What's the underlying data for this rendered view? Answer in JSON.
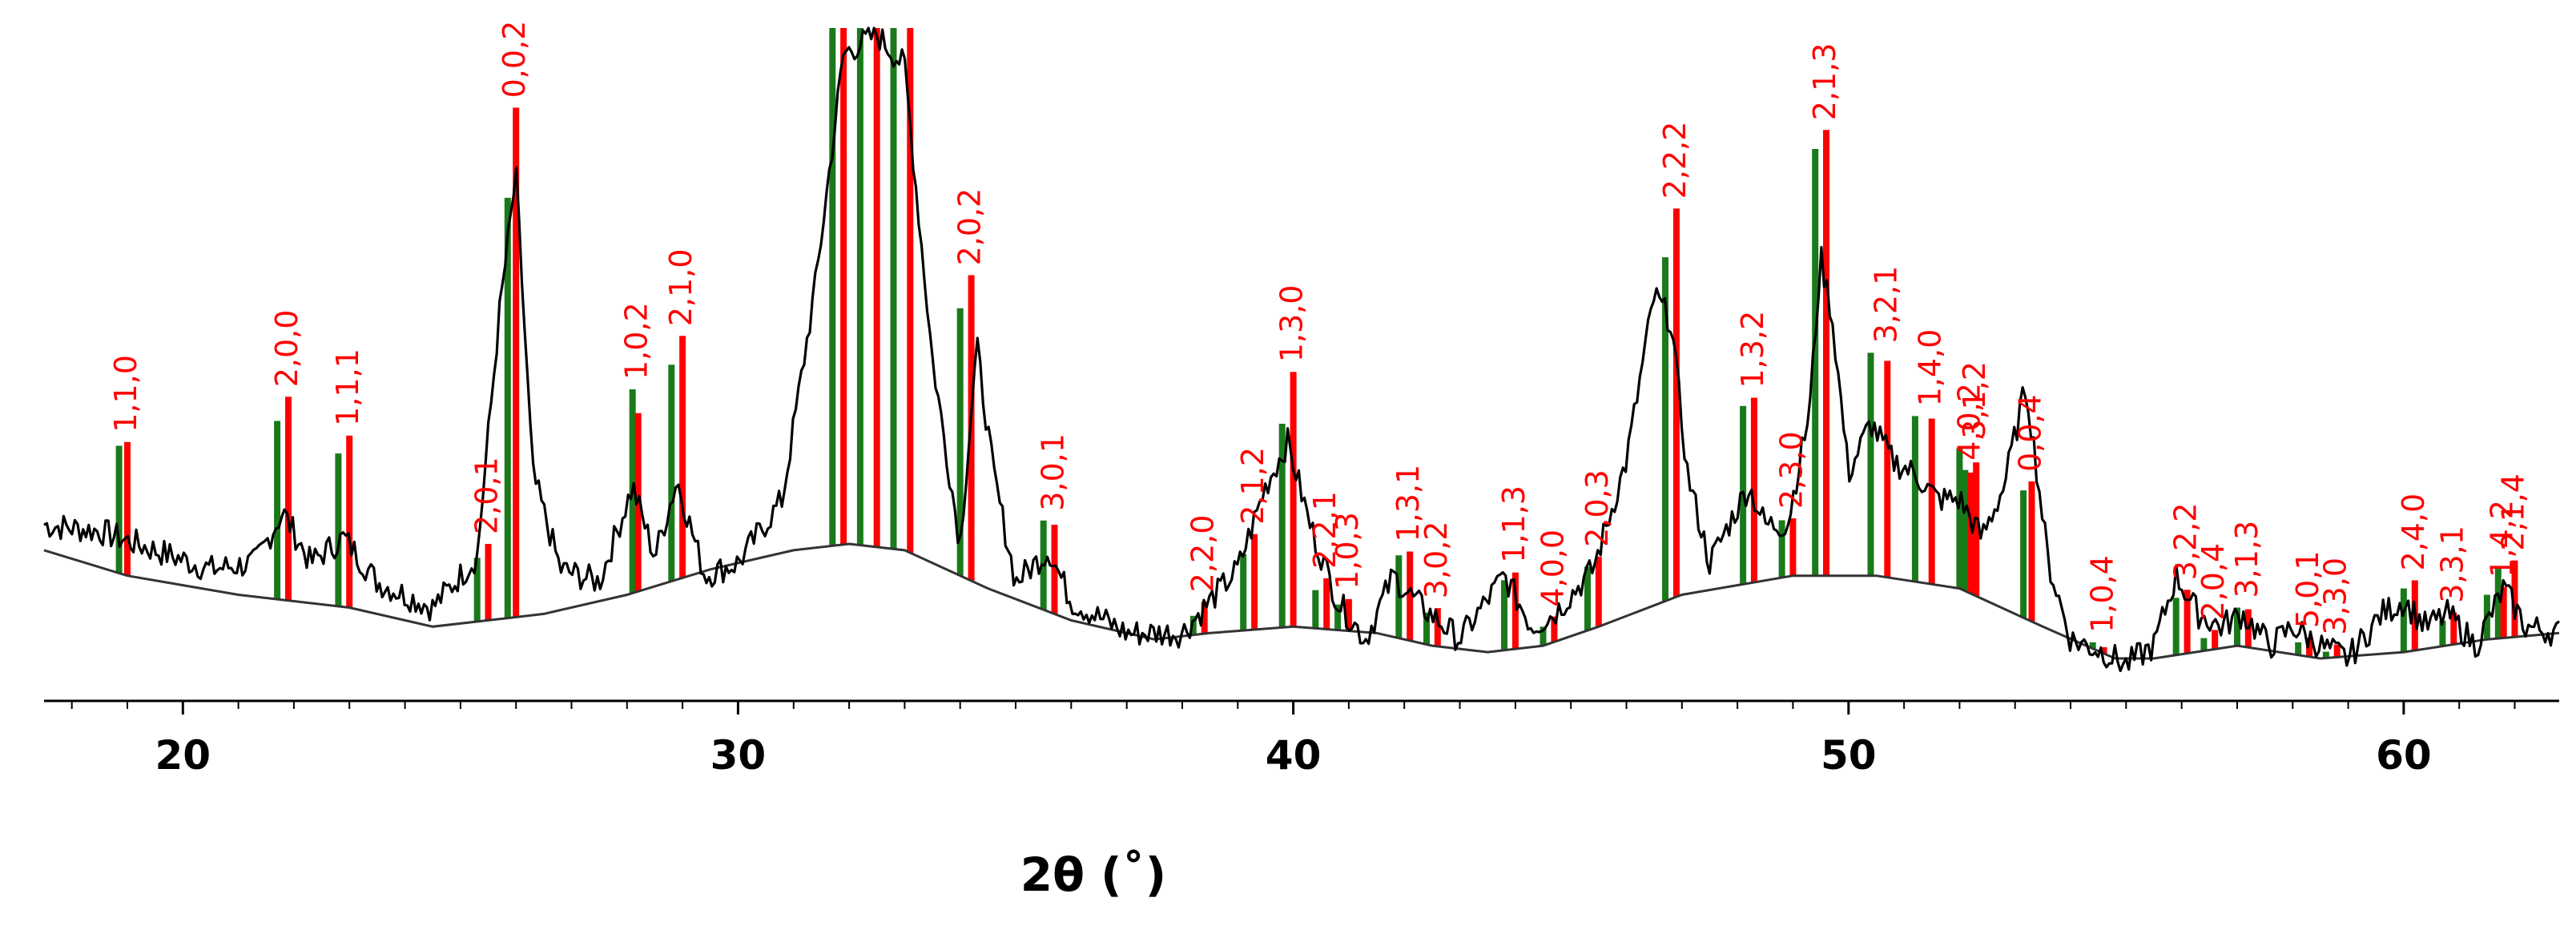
{
  "chart_data": {
    "type": "line",
    "title": "",
    "xlabel": "2θ (˚)",
    "ylabel": "",
    "xlim": [
      17.5,
      62.8
    ],
    "ylim": [
      0,
      100
    ],
    "grid": false,
    "legend": "none",
    "x_ticks": [
      20,
      30,
      40,
      50,
      60
    ],
    "x_tick_labels": [
      "20",
      "30",
      "40",
      "50",
      "60"
    ],
    "colors": {
      "pattern": "#000000",
      "background_curve": "#333333",
      "reference_green": "#1a7a1a",
      "reference_red": "#ff0000",
      "peak_label": "#ff0000"
    },
    "pattern": {
      "x": [
        17.5,
        18.5,
        19.5,
        20.5,
        21.3,
        21.8,
        22.3,
        22.9,
        23.5,
        24.5,
        25.3,
        25.7,
        26.0,
        26.3,
        26.8,
        27.5,
        28.1,
        28.5,
        28.9,
        29.4,
        30.0,
        30.8,
        31.4,
        31.9,
        32.5,
        33.0,
        33.5,
        34.0,
        34.3,
        34.6,
        35.0,
        35.6,
        36.0,
        37.0,
        38.0,
        39.0,
        39.5,
        39.9,
        40.3,
        40.8,
        41.3,
        41.8,
        42.2,
        43.0,
        43.8,
        44.3,
        44.7,
        45.4,
        46.0,
        46.5,
        46.8,
        47.1,
        47.5,
        47.9,
        48.2,
        48.5,
        48.9,
        49.3,
        49.5,
        49.7,
        50.0,
        50.4,
        50.8,
        51.2,
        51.6,
        52.0,
        52.4,
        52.8,
        53.2,
        53.6,
        54.0,
        54.6,
        55.0,
        55.5,
        55.9,
        56.3,
        56.7,
        57.1,
        57.6,
        58.0,
        58.5,
        59.0,
        59.6,
        60.0,
        60.4,
        60.8,
        61.3,
        61.8,
        62.2,
        62.8
      ],
      "y": [
        22,
        21,
        18,
        15,
        16,
        24,
        16,
        20,
        13,
        9,
        17,
        55,
        77,
        30,
        15,
        13,
        28,
        17,
        29,
        14,
        16,
        26,
        60,
        96,
        99,
        94,
        48,
        19,
        50,
        30,
        13,
        18,
        10,
        5,
        5,
        15,
        28,
        35,
        22,
        10,
        4,
        14,
        10,
        4,
        14,
        6,
        8,
        15,
        32,
        58,
        54,
        30,
        16,
        23,
        28,
        22,
        22,
        40,
        64,
        55,
        30,
        38,
        32,
        30,
        26,
        26,
        20,
        28,
        44,
        16,
        4,
        2,
        0,
        3,
        14,
        8,
        6,
        8,
        3,
        6,
        3,
        1,
        8,
        10,
        6,
        8,
        3,
        12,
        6,
        5
      ]
    },
    "background": {
      "x": [
        17.5,
        19.0,
        21.0,
        23.0,
        24.5,
        25.5,
        26.5,
        28.0,
        29.5,
        31.0,
        32.0,
        33.0,
        34.5,
        36.0,
        37.5,
        38.5,
        40.0,
        41.5,
        42.5,
        43.5,
        44.5,
        45.5,
        47.0,
        49.0,
        50.5,
        52.0,
        53.5,
        54.8,
        55.5,
        57.0,
        58.5,
        60.0,
        61.5,
        62.8
      ],
      "y": [
        18,
        14,
        11,
        9,
        6,
        7,
        8,
        11,
        15,
        18,
        19,
        18,
        12,
        7,
        4,
        5,
        6,
        5,
        3,
        2,
        3,
        6,
        11,
        14,
        14,
        12,
        6,
        1,
        1,
        3,
        1,
        2,
        4,
        5
      ]
    },
    "reference_peaks": [
      {
        "label": "1,1,0",
        "green": {
          "x": 18.85,
          "y": 20
        },
        "red": {
          "x": 19.0,
          "y": 21
        }
      },
      {
        "label": "2,0,0",
        "green": {
          "x": 21.7,
          "y": 28
        },
        "red": {
          "x": 21.9,
          "y": 32
        }
      },
      {
        "label": "1,1,1",
        "green": {
          "x": 22.8,
          "y": 24
        },
        "red": {
          "x": 23.0,
          "y": 27
        }
      },
      {
        "label": "2,0,1",
        "green": {
          "x": 25.3,
          "y": 10
        },
        "red": {
          "x": 25.5,
          "y": 12
        }
      },
      {
        "label": "0,0,2",
        "green": {
          "x": 25.85,
          "y": 66
        },
        "red": {
          "x": 26.0,
          "y": 80
        }
      },
      {
        "label": "1,0,2",
        "green": {
          "x": 28.1,
          "y": 32
        },
        "red": {
          "x": 28.2,
          "y": 28
        }
      },
      {
        "label": "2,1,0",
        "green": {
          "x": 28.8,
          "y": 34
        },
        "red": {
          "x": 29.0,
          "y": 38
        }
      },
      {
        "label": "",
        "green": {
          "x": 31.7,
          "y": 100
        },
        "red": {
          "x": 31.9,
          "y": 100
        }
      },
      {
        "label": "",
        "green": {
          "x": 32.2,
          "y": 100
        },
        "red": {
          "x": 32.5,
          "y": 100
        }
      },
      {
        "label": "",
        "green": {
          "x": 32.8,
          "y": 100
        },
        "red": {
          "x": 33.1,
          "y": 100
        }
      },
      {
        "label": "2,0,2",
        "green": {
          "x": 34.0,
          "y": 42
        },
        "red": {
          "x": 34.2,
          "y": 48
        }
      },
      {
        "label": "3,0,1",
        "green": {
          "x": 35.5,
          "y": 14
        },
        "red": {
          "x": 35.7,
          "y": 14
        }
      },
      {
        "label": "2,2,0",
        "green": {
          "x": 38.2,
          "y": 3
        },
        "red": {
          "x": 38.4,
          "y": 5
        }
      },
      {
        "label": "2,1,2",
        "green": {
          "x": 39.1,
          "y": 12
        },
        "red": {
          "x": 39.3,
          "y": 15
        }
      },
      {
        "label": "1,3,0",
        "green": {
          "x": 39.8,
          "y": 32
        },
        "red": {
          "x": 40.0,
          "y": 40
        }
      },
      {
        "label": "2,2,1",
        "green": {
          "x": 40.4,
          "y": 6
        },
        "red": {
          "x": 40.6,
          "y": 8
        }
      },
      {
        "label": "1,0,3",
        "green": {
          "x": 40.8,
          "y": 4
        },
        "red": {
          "x": 41.0,
          "y": 5
        }
      },
      {
        "label": "1,3,1",
        "green": {
          "x": 41.9,
          "y": 13
        },
        "red": {
          "x": 42.1,
          "y": 14
        }
      },
      {
        "label": "3,0,2",
        "green": {
          "x": 42.4,
          "y": 5
        },
        "red": {
          "x": 42.6,
          "y": 6
        }
      },
      {
        "label": "1,1,3",
        "green": {
          "x": 43.8,
          "y": 11
        },
        "red": {
          "x": 44.0,
          "y": 12
        }
      },
      {
        "label": "4,0,0",
        "green": {
          "x": 44.5,
          "y": 3
        },
        "red": {
          "x": 44.7,
          "y": 4
        }
      },
      {
        "label": "2,0,3",
        "green": {
          "x": 45.3,
          "y": 10
        },
        "red": {
          "x": 45.5,
          "y": 11
        }
      },
      {
        "label": "2,2,2",
        "green": {
          "x": 46.7,
          "y": 54
        },
        "red": {
          "x": 46.9,
          "y": 61
        }
      },
      {
        "label": "1,3,2",
        "green": {
          "x": 48.1,
          "y": 28
        },
        "red": {
          "x": 48.3,
          "y": 29
        }
      },
      {
        "label": "2,3,0",
        "green": {
          "x": 48.8,
          "y": 9
        },
        "red": {
          "x": 49.0,
          "y": 9
        }
      },
      {
        "label": "2,1,3",
        "green": {
          "x": 49.4,
          "y": 67
        },
        "red": {
          "x": 49.6,
          "y": 70
        }
      },
      {
        "label": "3,2,1",
        "green": {
          "x": 50.4,
          "y": 35
        },
        "red": {
          "x": 50.7,
          "y": 34
        }
      },
      {
        "label": "1,4,0",
        "green": {
          "x": 51.2,
          "y": 26
        },
        "red": {
          "x": 51.5,
          "y": 26
        }
      },
      {
        "label": "3,1,2",
        "green": {
          "x": 52.0,
          "y": 22
        },
        "red": {
          "x": 52.3,
          "y": 21
        }
      },
      {
        "label": "4,0,2",
        "green": {
          "x": 52.1,
          "y": 19
        },
        "red": {
          "x": 52.2,
          "y": 19
        }
      },
      {
        "label": "0,0,4",
        "green": {
          "x": 53.15,
          "y": 20
        },
        "red": {
          "x": 53.3,
          "y": 22
        }
      },
      {
        "label": "1,0,4",
        "green": {
          "x": 54.4,
          "y": 1
        },
        "red": {
          "x": 54.6,
          "y": 1
        }
      },
      {
        "label": "3,2,2",
        "green": {
          "x": 55.9,
          "y": 9
        },
        "red": {
          "x": 56.1,
          "y": 10
        }
      },
      {
        "label": "2,0,4",
        "green": {
          "x": 56.4,
          "y": 2
        },
        "red": {
          "x": 56.6,
          "y": 3
        }
      },
      {
        "label": "3,1,3",
        "green": {
          "x": 57.0,
          "y": 6
        },
        "red": {
          "x": 57.2,
          "y": 6
        }
      },
      {
        "label": "5,0,1",
        "green": {
          "x": 58.1,
          "y": 2
        },
        "red": {
          "x": 58.3,
          "y": 3
        }
      },
      {
        "label": "3,3,0",
        "green": {
          "x": 58.6,
          "y": 1
        },
        "red": {
          "x": 58.8,
          "y": 2
        }
      },
      {
        "label": "2,4,0",
        "green": {
          "x": 60.0,
          "y": 10
        },
        "red": {
          "x": 60.2,
          "y": 11
        }
      },
      {
        "label": "3,3,1",
        "green": {
          "x": 60.7,
          "y": 4
        },
        "red": {
          "x": 60.9,
          "y": 5
        }
      },
      {
        "label": "2,1,4",
        "green": {
          "x": 61.7,
          "y": 11
        },
        "red": {
          "x": 62.0,
          "y": 12
        }
      },
      {
        "label": "1,4,2",
        "green": {
          "x": 61.5,
          "y": 7
        },
        "red": {
          "x": 61.8,
          "y": 8
        }
      }
    ]
  }
}
